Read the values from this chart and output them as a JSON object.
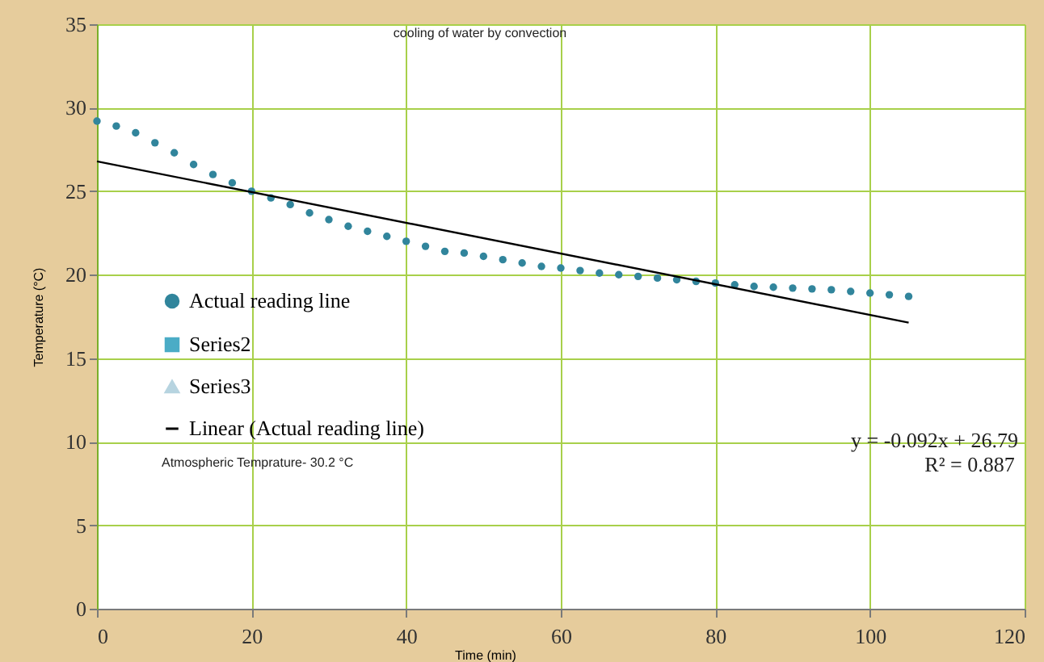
{
  "chart_data": {
    "type": "scatter",
    "title": "cooling of water by convection",
    "xlabel": "Time (min)",
    "ylabel": "Temperature (°C)",
    "annotations": [
      "Atmospheric Temprature- 30.2 °C",
      "y = -0.092x + 26.79",
      "R² = 0.887"
    ],
    "xlim": [
      0,
      120
    ],
    "xticks": [
      0,
      20,
      40,
      60,
      80,
      100,
      120
    ],
    "ylim": [
      0,
      35
    ],
    "yticks": [
      0,
      5,
      10,
      15,
      20,
      25,
      30,
      35
    ],
    "grid": true,
    "legend": "left",
    "series": [
      {
        "name": "Actual reading line",
        "marker": "circle",
        "color": "#31859c",
        "x": [
          0,
          2.5,
          5,
          7.5,
          10,
          12.5,
          15,
          17.5,
          20,
          22.5,
          25,
          27.5,
          30,
          32.5,
          35,
          37.5,
          40,
          42.5,
          45,
          47.5,
          50,
          52.5,
          55,
          57.5,
          60,
          62.5,
          65,
          67.5,
          70,
          72.5,
          75,
          77.5,
          80,
          82.5,
          85,
          87.5,
          90,
          92.5,
          95,
          97.5,
          100,
          102.5,
          105
        ],
        "values": [
          29.2,
          28.9,
          28.5,
          27.9,
          27.3,
          26.6,
          26.0,
          25.5,
          25.0,
          24.6,
          24.2,
          23.7,
          23.3,
          22.9,
          22.6,
          22.3,
          22.0,
          21.7,
          21.4,
          21.3,
          21.1,
          20.9,
          20.7,
          20.5,
          20.4,
          20.25,
          20.1,
          20.0,
          19.9,
          19.8,
          19.7,
          19.6,
          19.5,
          19.4,
          19.3,
          19.25,
          19.2,
          19.15,
          19.1,
          19.0,
          18.9,
          18.8,
          18.7
        ]
      },
      {
        "name": "Series2",
        "type": "scatter",
        "marker": "square",
        "color": "#4bacc6"
      },
      {
        "name": "Series3",
        "type": "scatter",
        "marker": "triangle",
        "color": "#b7d4e0"
      },
      {
        "name": "Linear (Actual reading line)",
        "type": "line",
        "marker": "none",
        "color": "#000000",
        "x": [
          0,
          105
        ],
        "values": [
          26.79,
          17.13
        ]
      }
    ]
  }
}
